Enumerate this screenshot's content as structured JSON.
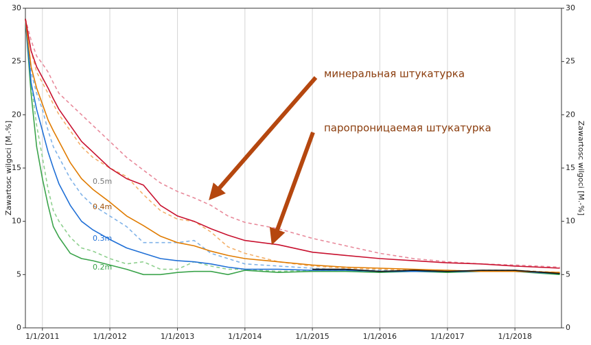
{
  "chart_data": {
    "type": "line",
    "y_label": "Zawartosc wilgoci [M.-%]",
    "y2_label": "Zawartosc wilgoci [M.-%]",
    "x": [
      "2010-10-01",
      "2010-11-01",
      "2010-12-01",
      "2011-01-01",
      "2011-02-01",
      "2011-03-01",
      "2011-04-01",
      "2011-06-01",
      "2011-08-01",
      "2011-10-01",
      "2012-01-01",
      "2012-04-01",
      "2012-07-01",
      "2012-10-01",
      "2013-01-01",
      "2013-04-01",
      "2013-07-01",
      "2013-10-01",
      "2014-01-01",
      "2014-07-01",
      "2015-01-01",
      "2015-07-01",
      "2016-01-01",
      "2016-07-01",
      "2017-01-01",
      "2017-07-01",
      "2018-01-01",
      "2018-09-01"
    ],
    "xlim": [
      "2010-10-01",
      "2018-09-10"
    ],
    "xticks": [
      {
        "value": "2011-01-01",
        "label": "1/1/2011"
      },
      {
        "value": "2012-01-01",
        "label": "1/1/2012"
      },
      {
        "value": "2013-01-01",
        "label": "1/1/2013"
      },
      {
        "value": "2014-01-01",
        "label": "1/1/2014"
      },
      {
        "value": "2015-01-01",
        "label": "1/1/2015"
      },
      {
        "value": "2016-01-01",
        "label": "1/1/2016"
      },
      {
        "value": "2017-01-01",
        "label": "1/1/2017"
      },
      {
        "value": "2018-01-01",
        "label": "1/1/2018"
      }
    ],
    "ylim": [
      0,
      30
    ],
    "yticks": [
      0,
      5,
      10,
      15,
      20,
      25,
      30
    ],
    "y2lim": [
      0,
      30
    ],
    "y2ticks": [
      0,
      5,
      10,
      15,
      20,
      25,
      30
    ],
    "grid": true,
    "series": [
      {
        "color": "#e8899a",
        "dashed": true,
        "values": [
          29,
          27,
          25.5,
          24.8,
          24,
          23,
          22,
          21,
          20,
          19,
          17.5,
          16,
          14.8,
          13.6,
          12.8,
          12.2,
          11.5,
          10.5,
          9.9,
          9.3,
          8.4,
          7.7,
          7.0,
          6.5,
          6.2,
          6.0,
          5.9,
          5.7
        ]
      },
      {
        "color": "#f4b06a",
        "dashed": true,
        "values": [
          29,
          26,
          24,
          23,
          22,
          21,
          20,
          18.5,
          17,
          16,
          15,
          14.2,
          12.5,
          11,
          10.2,
          10.0,
          9.0,
          7.6,
          7.0,
          6.2,
          5.8,
          5.6,
          5.5,
          5.4,
          5.4,
          5.3,
          5.4,
          5.2
        ]
      },
      {
        "color": "#7fb2e8",
        "dashed": true,
        "values": [
          29,
          24,
          22,
          20.5,
          18.5,
          17,
          16,
          14,
          12.5,
          11.5,
          10.5,
          9.5,
          8.0,
          8.0,
          8.0,
          8.2,
          7.0,
          6.5,
          6.0,
          5.8,
          5.6,
          5.4,
          5.4,
          5.3,
          5.4,
          5.3,
          5.4,
          5.1
        ]
      },
      {
        "color": "#8fd08f",
        "dashed": true,
        "values": [
          29,
          23,
          19,
          16,
          13,
          11,
          10,
          8.5,
          7.5,
          7.2,
          6.5,
          6.0,
          6.2,
          5.5,
          5.5,
          6.2,
          5.8,
          5.5,
          5.5,
          5.3,
          5.4,
          5.4,
          5.3,
          5.4,
          5.3,
          5.4,
          5.4,
          5.1
        ]
      },
      {
        "color": "#3aa34a",
        "dashed": false,
        "values": [
          29,
          22,
          17,
          14,
          11.5,
          9.5,
          8.5,
          7,
          6.5,
          6.3,
          5.9,
          5.5,
          5.0,
          5.0,
          5.2,
          5.3,
          5.3,
          5.0,
          5.4,
          5.2,
          5.3,
          5.3,
          5.2,
          5.3,
          5.2,
          5.3,
          5.3,
          5.0
        ]
      },
      {
        "color": "#1f6fd6",
        "dashed": false,
        "values": [
          29,
          23,
          20.5,
          18.5,
          16.5,
          15,
          13.5,
          11.5,
          10,
          9.2,
          8.3,
          7.5,
          7.0,
          6.5,
          6.3,
          6.2,
          6.0,
          5.7,
          5.5,
          5.5,
          5.4,
          5.4,
          5.3,
          5.3,
          5.3,
          5.3,
          5.3,
          5.1
        ]
      },
      {
        "color": "#e07b00",
        "dashed": false,
        "values": [
          29,
          24.5,
          22.5,
          21,
          19.5,
          18.5,
          17.5,
          15.5,
          14,
          13,
          11.8,
          10.5,
          9.6,
          8.6,
          8.0,
          7.7,
          7.2,
          6.8,
          6.5,
          6.2,
          5.9,
          5.7,
          5.6,
          5.5,
          5.4,
          5.3,
          5.3,
          5.2
        ]
      },
      {
        "color": "#c8102e",
        "dashed": false,
        "values": [
          29,
          26,
          24.5,
          23.5,
          22.5,
          21.5,
          20.5,
          19,
          17.5,
          16.5,
          15,
          14,
          13.4,
          11.5,
          10.5,
          10,
          9.3,
          8.7,
          8.2,
          7.8,
          7.1,
          6.8,
          6.5,
          6.3,
          6.1,
          6.0,
          5.8,
          5.6
        ]
      },
      {
        "color": "#111111",
        "dashed": false,
        "values": [
          null,
          null,
          null,
          null,
          null,
          null,
          null,
          null,
          null,
          null,
          null,
          null,
          null,
          null,
          null,
          null,
          null,
          null,
          null,
          null,
          5.5,
          5.5,
          5.3,
          5.4,
          5.3,
          5.4,
          5.4,
          5.1
        ]
      }
    ],
    "annotations": [
      {
        "text": "0.5m",
        "color": "#777777"
      },
      {
        "text": "0.4m",
        "color": "#a0520a"
      },
      {
        "text": "0.3m",
        "color": "#1f6fd6"
      },
      {
        "text": "0.2m",
        "color": "#3aa34a"
      },
      {
        "text": "минеральная штукатурка",
        "color": "#8a3c0c"
      },
      {
        "text": "паропроницаемая штукатурка",
        "color": "#8a3c0c"
      }
    ]
  }
}
